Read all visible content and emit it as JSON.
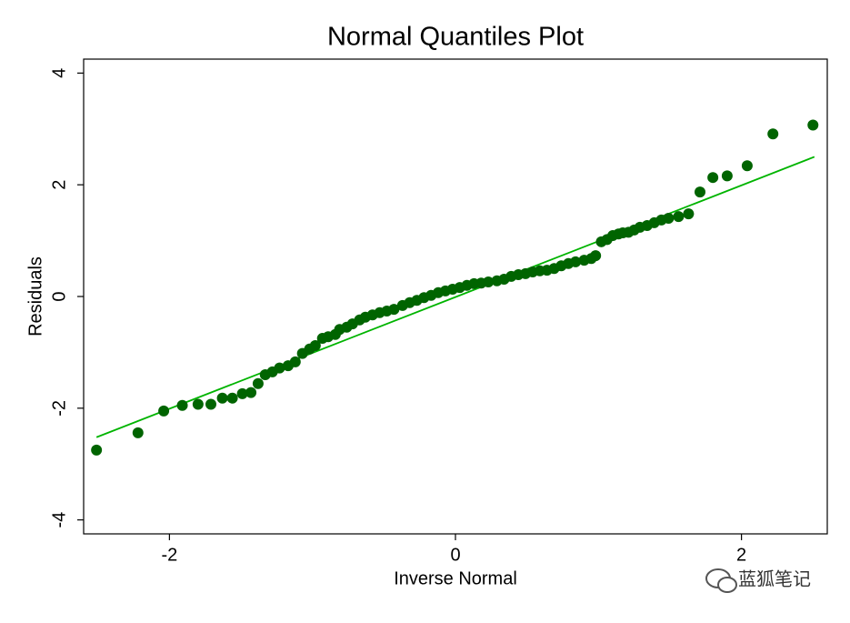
{
  "chart_data": {
    "type": "scatter",
    "title": "Normal Quantiles Plot",
    "x_label": "Inverse Normal",
    "y_label": "Residuals",
    "x": [
      -2.51,
      -2.22,
      -2.04,
      -1.91,
      -1.8,
      -1.71,
      -1.63,
      -1.56,
      -1.49,
      -1.43,
      -1.38,
      -1.33,
      -1.28,
      -1.23,
      -1.17,
      -1.12,
      -1.07,
      -1.02,
      -0.98,
      -0.93,
      -0.89,
      -0.84,
      -0.81,
      -0.76,
      -0.72,
      -0.67,
      -0.63,
      -0.58,
      -0.53,
      -0.48,
      -0.43,
      -0.37,
      -0.32,
      -0.27,
      -0.22,
      -0.17,
      -0.12,
      -0.07,
      -0.02,
      0.03,
      0.08,
      0.13,
      0.18,
      0.23,
      0.29,
      0.34,
      0.39,
      0.44,
      0.49,
      0.54,
      0.59,
      0.64,
      0.69,
      0.74,
      0.79,
      0.84,
      0.9,
      0.95,
      0.98,
      1.02,
      1.06,
      1.1,
      1.14,
      1.17,
      1.21,
      1.25,
      1.29,
      1.34,
      1.39,
      1.44,
      1.49,
      1.56,
      1.63,
      1.71,
      1.8,
      1.9,
      2.04,
      2.22,
      2.5
    ],
    "values": [
      -2.75,
      -2.44,
      -2.05,
      -1.95,
      -1.93,
      -1.93,
      -1.82,
      -1.82,
      -1.74,
      -1.72,
      -1.56,
      -1.4,
      -1.35,
      -1.28,
      -1.24,
      -1.17,
      -1.02,
      -0.94,
      -0.88,
      -0.75,
      -0.72,
      -0.68,
      -0.59,
      -0.55,
      -0.49,
      -0.42,
      -0.37,
      -0.33,
      -0.29,
      -0.26,
      -0.23,
      -0.16,
      -0.11,
      -0.07,
      -0.02,
      0.02,
      0.07,
      0.1,
      0.13,
      0.16,
      0.2,
      0.23,
      0.24,
      0.26,
      0.28,
      0.31,
      0.36,
      0.39,
      0.41,
      0.44,
      0.46,
      0.47,
      0.5,
      0.55,
      0.59,
      0.62,
      0.65,
      0.68,
      0.73,
      0.98,
      1.02,
      1.09,
      1.12,
      1.14,
      1.15,
      1.19,
      1.24,
      1.27,
      1.32,
      1.37,
      1.4,
      1.43,
      1.48,
      1.87,
      2.13,
      2.16,
      2.34,
      2.91,
      3.07
    ],
    "color": "#006400",
    "fit_line": {
      "x": [
        -2.51,
        2.51
      ],
      "y": [
        -2.52,
        2.5
      ],
      "color": "#00b400"
    },
    "xlim": [
      -2.6,
      2.6
    ],
    "ylim": [
      -4.25,
      4.25
    ],
    "xticks": [
      -2,
      0,
      2
    ],
    "yticks": [
      -4,
      -2,
      0,
      2,
      4
    ],
    "grid": false
  },
  "watermark": "蓝狐笔记"
}
